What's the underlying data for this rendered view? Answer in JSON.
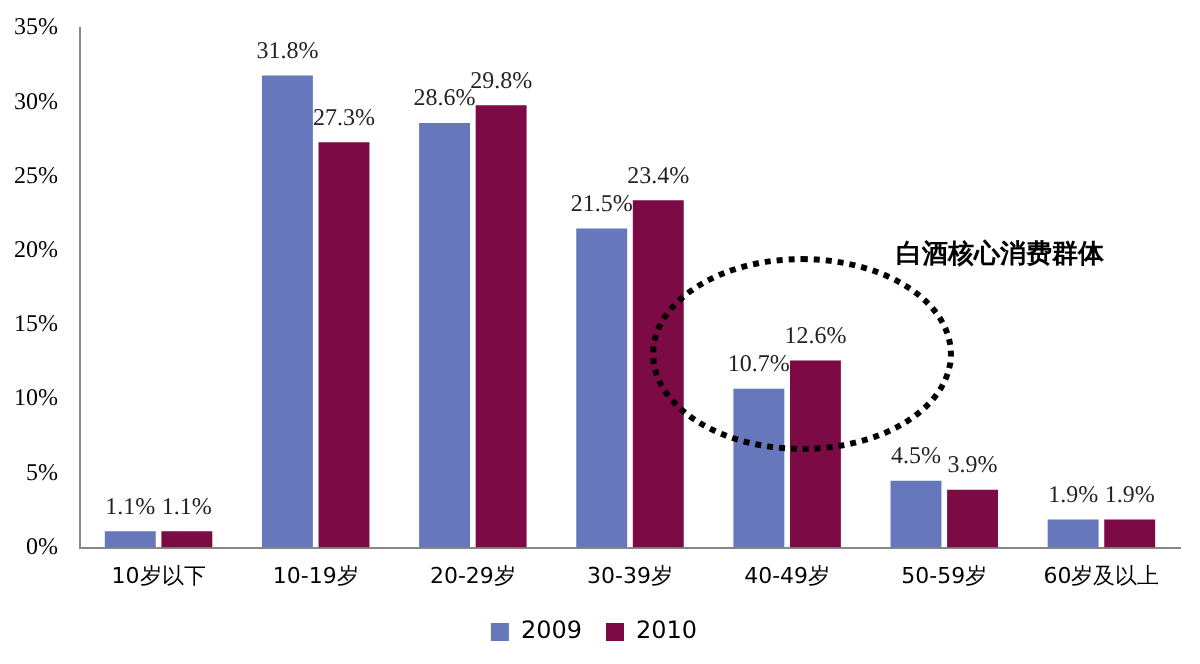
{
  "chart_data": {
    "type": "bar",
    "categories": [
      "10岁以下",
      "10-19岁",
      "20-29岁",
      "30-39岁",
      "40-49岁",
      "50-59岁",
      "60岁及以上"
    ],
    "series": [
      {
        "name": "2009",
        "color": "#6677bb",
        "values": [
          1.1,
          31.8,
          28.6,
          21.5,
          10.7,
          4.5,
          1.9
        ],
        "value_labels": [
          "1.1%",
          "31.8%",
          "28.6%",
          "21.5%",
          "10.7%",
          "4.5%",
          "1.9%"
        ]
      },
      {
        "name": "2010",
        "color": "#7b0a45",
        "values": [
          1.1,
          27.3,
          29.8,
          23.4,
          12.6,
          3.9,
          1.9
        ],
        "value_labels": [
          "1.1%",
          "27.3%",
          "29.8%",
          "23.4%",
          "12.6%",
          "3.9%",
          "1.9%"
        ]
      }
    ],
    "ylim": [
      0,
      35
    ],
    "yticks": [
      {
        "value": 0,
        "label": "0%"
      },
      {
        "value": 5,
        "label": "5%"
      },
      {
        "value": 10,
        "label": "10%"
      },
      {
        "value": 15,
        "label": "15%"
      },
      {
        "value": 20,
        "label": "20%"
      },
      {
        "value": 25,
        "label": "25%"
      },
      {
        "value": 30,
        "label": "30%"
      },
      {
        "value": 35,
        "label": "35%"
      }
    ],
    "annotations": [
      "白酒核心消费群体"
    ],
    "grid": false,
    "legend": "bottom"
  }
}
